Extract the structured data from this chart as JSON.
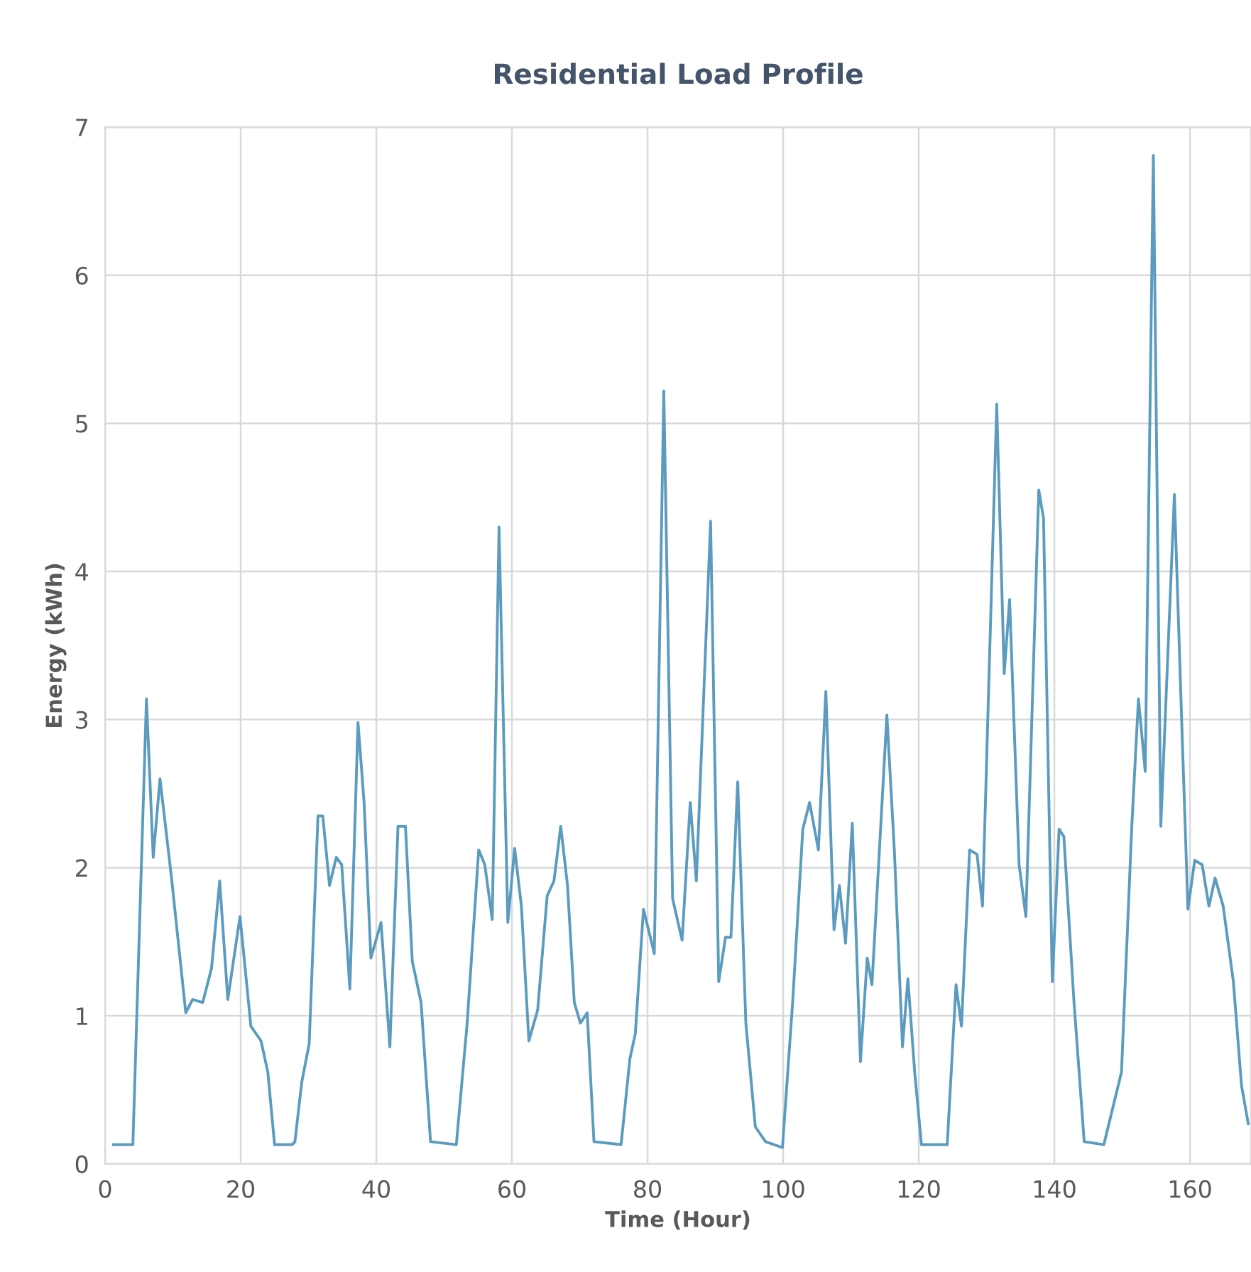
{
  "chart_data": {
    "type": "line",
    "title": "Residential Load Profile",
    "xlabel": "Time (Hour)",
    "ylabel": "Energy (kWh)",
    "xlim": [
      0,
      169
    ],
    "ylim": [
      0,
      7
    ],
    "xticks": [
      0,
      20,
      40,
      60,
      80,
      100,
      120,
      140,
      160
    ],
    "yticks": [
      0,
      1,
      2,
      3,
      4,
      5,
      6,
      7
    ],
    "grid": true,
    "marker": "none",
    "line_style": "solid",
    "series": [
      {
        "color": "#5b9bbf",
        "x": [
          1.2,
          4.1,
          6.1,
          7.1,
          8.1,
          9.8,
          11.9,
          12.9,
          14.4,
          15.7,
          16.9,
          18.1,
          19.9,
          21.5,
          23.0,
          24.0,
          25.0,
          27.6,
          28.0,
          29.0,
          30.1,
          31.4,
          32.1,
          33.1,
          34.1,
          34.9,
          36.1,
          37.3,
          38.2,
          39.2,
          40.7,
          42.0,
          43.2,
          44.3,
          45.3,
          46.6,
          48.0,
          51.8,
          53.4,
          55.1,
          56.0,
          57.1,
          58.1,
          59.4,
          60.4,
          61.4,
          62.5,
          63.8,
          65.2,
          66.2,
          67.2,
          68.2,
          69.2,
          70.1,
          71.1,
          72.1,
          76.1,
          77.4,
          78.2,
          79.4,
          81.0,
          82.4,
          83.7,
          85.1,
          86.3,
          87.2,
          89.3,
          90.5,
          91.5,
          92.3,
          93.3,
          94.5,
          95.9,
          97.4,
          99.9,
          101.4,
          102.9,
          103.9,
          105.2,
          106.3,
          107.5,
          108.3,
          109.2,
          110.2,
          111.4,
          112.4,
          113.1,
          115.3,
          116.4,
          117.6,
          118.4,
          119.4,
          120.4,
          124.2,
          125.5,
          126.3,
          127.5,
          128.6,
          129.4,
          131.5,
          132.6,
          133.4,
          134.8,
          135.8,
          137.7,
          138.4,
          139.7,
          140.7,
          141.4,
          142.9,
          144.4,
          147.3,
          149.9,
          151.4,
          152.4,
          153.4,
          154.6,
          155.7,
          157.7,
          158.8,
          159.7,
          160.7,
          161.8,
          162.8,
          163.7,
          164.9,
          166.4,
          167.6,
          168.6
        ],
        "values": [
          0.13,
          0.13,
          3.14,
          2.07,
          2.6,
          1.93,
          1.02,
          1.11,
          1.09,
          1.32,
          1.91,
          1.11,
          1.67,
          0.93,
          0.83,
          0.62,
          0.13,
          0.13,
          0.15,
          0.55,
          0.81,
          2.35,
          2.35,
          1.88,
          2.07,
          2.02,
          1.18,
          2.98,
          2.44,
          1.39,
          1.63,
          0.79,
          2.28,
          2.28,
          1.37,
          1.09,
          0.15,
          0.13,
          0.95,
          2.12,
          2.02,
          1.65,
          4.3,
          1.63,
          2.13,
          1.74,
          0.83,
          1.04,
          1.81,
          1.91,
          2.28,
          1.88,
          1.09,
          0.95,
          1.02,
          0.15,
          0.13,
          0.71,
          0.88,
          1.72,
          1.42,
          5.22,
          1.79,
          1.51,
          2.44,
          1.91,
          4.34,
          1.23,
          1.53,
          1.53,
          2.58,
          0.95,
          0.25,
          0.15,
          0.11,
          1.09,
          2.26,
          2.44,
          2.12,
          3.19,
          1.58,
          1.88,
          1.49,
          2.3,
          0.69,
          1.39,
          1.21,
          3.03,
          2.12,
          0.79,
          1.25,
          0.62,
          0.13,
          0.13,
          1.21,
          0.93,
          2.12,
          2.09,
          1.74,
          5.13,
          3.31,
          3.81,
          2.02,
          1.67,
          4.55,
          4.36,
          1.23,
          2.26,
          2.21,
          1.09,
          0.15,
          0.13,
          0.62,
          2.26,
          3.14,
          2.65,
          6.81,
          2.28,
          4.52,
          2.96,
          1.72,
          2.05,
          2.02,
          1.74,
          1.93,
          1.74,
          1.23,
          0.53,
          0.27
        ]
      }
    ]
  }
}
